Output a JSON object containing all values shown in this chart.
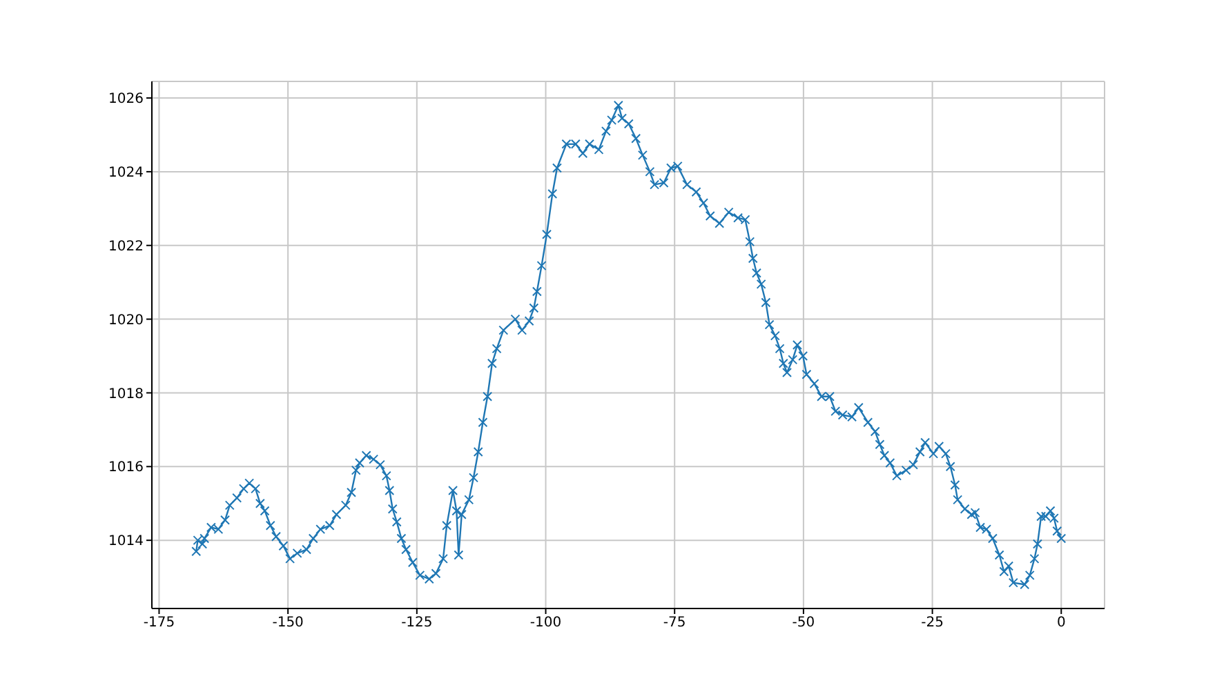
{
  "chart_data": {
    "type": "line",
    "x": [
      -167.8,
      -167.5,
      -166.6,
      -166.2,
      -164.9,
      -163.5,
      -162.2,
      -161.3,
      -159.9,
      -158.6,
      -157.5,
      -156.3,
      -155.4,
      -154.5,
      -153.4,
      -152.3,
      -150.9,
      -149.6,
      -148.2,
      -146.4,
      -145.1,
      -143.7,
      -141.9,
      -140.6,
      -138.8,
      -137.7,
      -136.8,
      -136.1,
      -134.8,
      -133.4,
      -132.1,
      -130.9,
      -130.3,
      -129.7,
      -128.9,
      -128,
      -127.1,
      -125.8,
      -124.4,
      -122.6,
      -121.3,
      -119.9,
      -119.2,
      -118,
      -117.3,
      -116.9,
      -116.3,
      -114.9,
      -114,
      -113.1,
      -112.2,
      -111.3,
      -110.4,
      -109.5,
      -108.2,
      -105.9,
      -104.6,
      -103.2,
      -102.3,
      -101.7,
      -100.8,
      -99.8,
      -98.7,
      -97.8,
      -96,
      -94.2,
      -92.8,
      -91.5,
      -89.7,
      -88.3,
      -87.2,
      -85.9,
      -85.2,
      -83.9,
      -82.5,
      -81.2,
      -79.8,
      -78.9,
      -77.1,
      -75.7,
      -74.4,
      -72.6,
      -70.8,
      -69.4,
      -68.1,
      -66.3,
      -64.5,
      -62.7,
      -61.3,
      -60.4,
      -59.8,
      -59.1,
      -58.2,
      -57.3,
      -56.6,
      -55.5,
      -54.6,
      -53.9,
      -53.2,
      -52.1,
      -51.2,
      -50.1,
      -49.4,
      -47.9,
      -46.5,
      -44.9,
      -43.8,
      -42.4,
      -40.6,
      -39.3,
      -37.5,
      -36.1,
      -35.2,
      -34.3,
      -33.2,
      -31.9,
      -30.1,
      -28.7,
      -27.4,
      -26.4,
      -24.8,
      -23.7,
      -22.4,
      -21.5,
      -20.6,
      -20.1,
      -18.7,
      -17.4,
      -16.7,
      -15.7,
      -14.5,
      -13.3,
      -12,
      -11.1,
      -10.2,
      -9.3,
      -7.1,
      -6.1,
      -5.2,
      -4.6,
      -3.9,
      -3,
      -2.1,
      -1.4,
      -0.8,
      0
    ],
    "series": [
      {
        "color": "#1f77b4",
        "values": [
          1013.7,
          1014.0,
          1013.9,
          1014.05,
          1014.35,
          1014.3,
          1014.55,
          1014.95,
          1015.15,
          1015.4,
          1015.55,
          1015.4,
          1015.0,
          1014.8,
          1014.4,
          1014.1,
          1013.85,
          1013.5,
          1013.65,
          1013.75,
          1014.05,
          1014.3,
          1014.4,
          1014.7,
          1014.95,
          1015.3,
          1015.9,
          1016.1,
          1016.3,
          1016.2,
          1016.05,
          1015.75,
          1015.35,
          1014.85,
          1014.5,
          1014.05,
          1013.75,
          1013.4,
          1013.05,
          1012.95,
          1013.1,
          1013.5,
          1014.4,
          1015.35,
          1014.8,
          1013.6,
          1014.7,
          1015.1,
          1015.7,
          1016.4,
          1017.2,
          1017.9,
          1018.8,
          1019.2,
          1019.7,
          1020.0,
          1019.7,
          1019.95,
          1020.3,
          1020.75,
          1021.45,
          1022.3,
          1023.4,
          1024.1,
          1024.75,
          1024.75,
          1024.5,
          1024.75,
          1024.6,
          1025.1,
          1025.4,
          1025.8,
          1025.45,
          1025.3,
          1024.9,
          1024.45,
          1024.0,
          1023.65,
          1023.7,
          1024.1,
          1024.15,
          1023.65,
          1023.45,
          1023.15,
          1022.8,
          1022.6,
          1022.9,
          1022.75,
          1022.7,
          1022.1,
          1021.65,
          1021.25,
          1020.95,
          1020.45,
          1019.85,
          1019.55,
          1019.2,
          1018.8,
          1018.55,
          1018.9,
          1019.3,
          1019.0,
          1018.5,
          1018.25,
          1017.9,
          1017.9,
          1017.5,
          1017.4,
          1017.35,
          1017.6,
          1017.2,
          1016.95,
          1016.6,
          1016.3,
          1016.1,
          1015.75,
          1015.9,
          1016.05,
          1016.4,
          1016.65,
          1016.35,
          1016.55,
          1016.35,
          1016.0,
          1015.5,
          1015.1,
          1014.85,
          1014.7,
          1014.75,
          1014.35,
          1014.3,
          1014.05,
          1013.6,
          1013.15,
          1013.3,
          1012.85,
          1012.8,
          1013.05,
          1013.5,
          1013.9,
          1014.65,
          1014.65,
          1014.8,
          1014.6,
          1014.25,
          1014.05
        ]
      }
    ],
    "xlim": [
      -176.4,
      8.4
    ],
    "ylim": [
      1012.15,
      1026.45
    ],
    "xticks": [
      -175,
      -150,
      -125,
      -100,
      -75,
      -50,
      -25,
      0
    ],
    "yticks": [
      1014,
      1016,
      1018,
      1020,
      1022,
      1024,
      1026
    ],
    "grid": true,
    "marker": "cross",
    "line_style": "solid"
  }
}
